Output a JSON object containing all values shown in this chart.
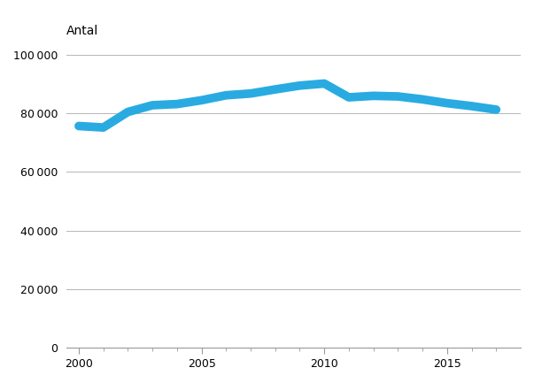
{
  "years": [
    2000,
    2001,
    2002,
    2003,
    2004,
    2005,
    2006,
    2007,
    2008,
    2009,
    2010,
    2011,
    2012,
    2013,
    2014,
    2015,
    2016,
    2017
  ],
  "values": [
    75700,
    75200,
    80500,
    82800,
    83200,
    84500,
    86200,
    86800,
    88200,
    89500,
    90200,
    85500,
    86000,
    85800,
    84800,
    83500,
    82500,
    81300
  ],
  "line_color": "#29ABE2",
  "ylabel": "Antal",
  "ylim": [
    0,
    100000
  ],
  "yticks": [
    0,
    20000,
    40000,
    60000,
    80000,
    100000
  ],
  "ytick_labels": [
    "0",
    "20 000",
    "40 000",
    "60 000",
    "80 000",
    "100 000"
  ],
  "xlim": [
    1999.5,
    2018.0
  ],
  "xticks": [
    2000,
    2005,
    2010,
    2015
  ],
  "minor_xticks": [
    2000,
    2001,
    2002,
    2003,
    2004,
    2005,
    2006,
    2007,
    2008,
    2009,
    2010,
    2011,
    2012,
    2013,
    2014,
    2015,
    2016,
    2017
  ],
  "background_color": "#ffffff",
  "grid_color": "#b5b5b5",
  "line_width": 7.0,
  "axis_fontsize": 9
}
